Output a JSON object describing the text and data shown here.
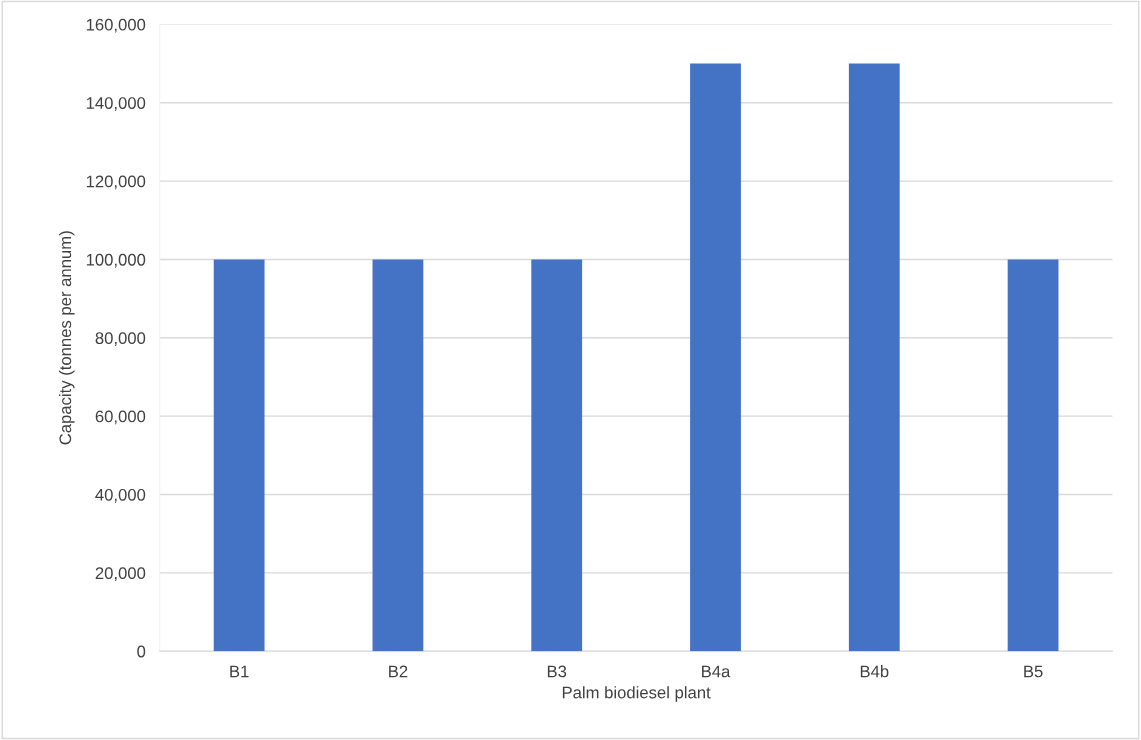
{
  "chart_data": {
    "type": "bar",
    "xlabel": "Palm biodiesel plant",
    "ylabel": "Capacity (tonnes per annum)",
    "categories": [
      "B1",
      "B2",
      "B3",
      "B4a",
      "B4b",
      "B5"
    ],
    "values": [
      100000,
      100000,
      100000,
      150000,
      150000,
      100000
    ],
    "color": "#4472c4",
    "ylim": [
      0,
      160000
    ],
    "yticks": [
      0,
      {
        "value": 20000,
        "label": "20,000"
      },
      {
        "value": 40000,
        "label": "40,000"
      },
      {
        "value": 60000,
        "label": "60,000"
      },
      {
        "value": 80000,
        "label": "80,000"
      },
      {
        "value": 100000,
        "label": "100,000"
      },
      {
        "value": 120000,
        "label": "120,000"
      },
      {
        "value": 140000,
        "label": "140,000"
      },
      {
        "value": 160000,
        "label": "160,000"
      }
    ],
    "grid": "y",
    "legend": false
  }
}
